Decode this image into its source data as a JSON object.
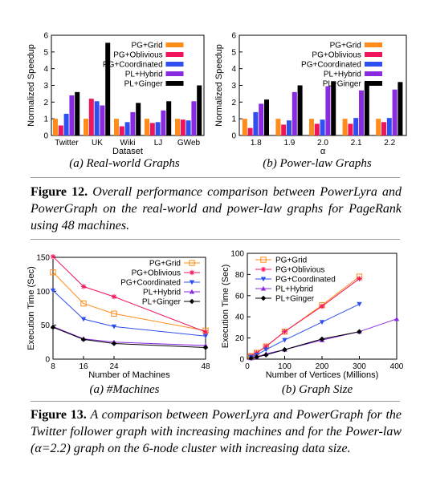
{
  "colors": {
    "PG+Grid": "#ff8c1a",
    "PG+Oblivious": "#f0145a",
    "PG+Coordinated": "#2f4ff0",
    "PL+Hybrid": "#8a2be2",
    "PL+Ginger": "#000000"
  },
  "chart_data": [
    {
      "type": "bar",
      "subtitle": "(a) Real-world Graphs",
      "xlabel": "Dataset",
      "ylabel": "Normalized Speedup",
      "ylim": [
        0,
        6
      ],
      "yticks": [
        "0",
        "1",
        "2",
        "3",
        "4",
        "5",
        "6"
      ],
      "categories": [
        "Twitter",
        "UK",
        "Wiki",
        "LJ",
        "GWeb"
      ],
      "legend": "top-left",
      "series": [
        {
          "name": "PG+Grid",
          "values": [
            1.0,
            1.0,
            1.0,
            1.0,
            1.0
          ]
        },
        {
          "name": "PG+Oblivious",
          "values": [
            0.6,
            2.2,
            0.55,
            0.75,
            0.95
          ]
        },
        {
          "name": "PG+Coordinated",
          "values": [
            1.3,
            2.05,
            0.8,
            0.8,
            0.9
          ]
        },
        {
          "name": "PL+Hybrid",
          "values": [
            2.4,
            1.8,
            1.4,
            1.5,
            2.05
          ]
        },
        {
          "name": "PL+Ginger",
          "values": [
            2.6,
            5.55,
            1.95,
            2.05,
            3.0
          ]
        }
      ]
    },
    {
      "type": "bar",
      "subtitle": "(b) Power-law Graphs",
      "xlabel": "α",
      "ylabel": "Normalized Speedup",
      "ylim": [
        0,
        6
      ],
      "yticks": [
        "0",
        "1",
        "2",
        "3",
        "4",
        "5",
        "6"
      ],
      "categories": [
        "1.8",
        "1.9",
        "2.0",
        "2.1",
        "2.2"
      ],
      "legend": "top-left",
      "series": [
        {
          "name": "PG+Grid",
          "values": [
            1.0,
            1.0,
            1.0,
            1.0,
            1.0
          ]
        },
        {
          "name": "PG+Oblivious",
          "values": [
            0.45,
            0.65,
            0.7,
            0.7,
            0.8
          ]
        },
        {
          "name": "PG+Coordinated",
          "values": [
            1.4,
            0.9,
            0.95,
            1.05,
            1.05
          ]
        },
        {
          "name": "PL+Hybrid",
          "values": [
            1.9,
            2.6,
            2.95,
            2.7,
            2.75
          ]
        },
        {
          "name": "PL+Ginger",
          "values": [
            2.15,
            3.0,
            3.25,
            3.2,
            3.2
          ]
        }
      ]
    },
    {
      "type": "line",
      "subtitle": "(a) #Machines",
      "xlabel": "Number of Machines",
      "ylabel": "Execution Time (Sec)",
      "xlim": [
        8,
        48
      ],
      "ylim": [
        0,
        150
      ],
      "xticks": [
        "8",
        "16",
        "24",
        "48"
      ],
      "yticks": [
        "0",
        "50",
        "100",
        "150"
      ],
      "legend": "top-right",
      "x": [
        8,
        16,
        24,
        48
      ],
      "series": [
        {
          "name": "PG+Grid",
          "values": [
            128,
            82,
            67,
            42
          ]
        },
        {
          "name": "PG+Oblivious",
          "values": [
            151,
            107,
            92,
            40
          ]
        },
        {
          "name": "PG+Coordinated",
          "values": [
            101,
            59,
            48,
            34
          ]
        },
        {
          "name": "PL+Hybrid",
          "values": [
            48,
            30,
            25,
            20
          ]
        },
        {
          "name": "PL+Ginger",
          "values": [
            47,
            29,
            23,
            17
          ]
        }
      ]
    },
    {
      "type": "line",
      "subtitle": "(b) Graph Size",
      "xlabel": "Number of Vertices (Millions)",
      "ylabel": "Execution Time (Sec)",
      "xlim": [
        0,
        400
      ],
      "ylim": [
        0,
        100
      ],
      "xticks": [
        "0",
        "100",
        "200",
        "300",
        "400"
      ],
      "yticks": [
        "0",
        "20",
        "40",
        "60",
        "80",
        "100"
      ],
      "legend": "top-left",
      "x": [
        10,
        25,
        50,
        100,
        200,
        300
      ],
      "series": [
        {
          "name": "PG+Grid",
          "values": [
            3,
            6,
            12,
            26,
            51,
            78
          ]
        },
        {
          "name": "PG+Oblivious",
          "values": [
            3,
            6,
            12,
            26,
            50,
            76
          ]
        },
        {
          "name": "PG+Coordinated",
          "values": [
            2,
            4,
            9,
            18,
            35,
            52
          ]
        },
        {
          "name": "PL+Hybrid",
          "values": [
            1,
            2,
            5,
            9,
            18,
            26
          ]
        },
        {
          "name": "PL+Ginger",
          "values": [
            1,
            2,
            4,
            9,
            19,
            26
          ]
        }
      ],
      "extra_points": [
        {
          "series": "PL+Hybrid",
          "x": 400,
          "y": 38
        }
      ]
    }
  ],
  "captions": {
    "fig12_label": "Figure 12.",
    "fig12_text": "Overall performance comparison between PowerLyra and PowerGraph on the real-world and power-law graphs for PageRank using 48 machines.",
    "fig13_label": "Figure 13.",
    "fig13_text_a": "A comparison between PowerLyra and PowerGraph for the Twitter follower graph with increasing machines and for the Power-law (",
    "fig13_alpha": "α=2.2",
    "fig13_text_b": ") graph on the 6-node cluster with increasing data size."
  }
}
